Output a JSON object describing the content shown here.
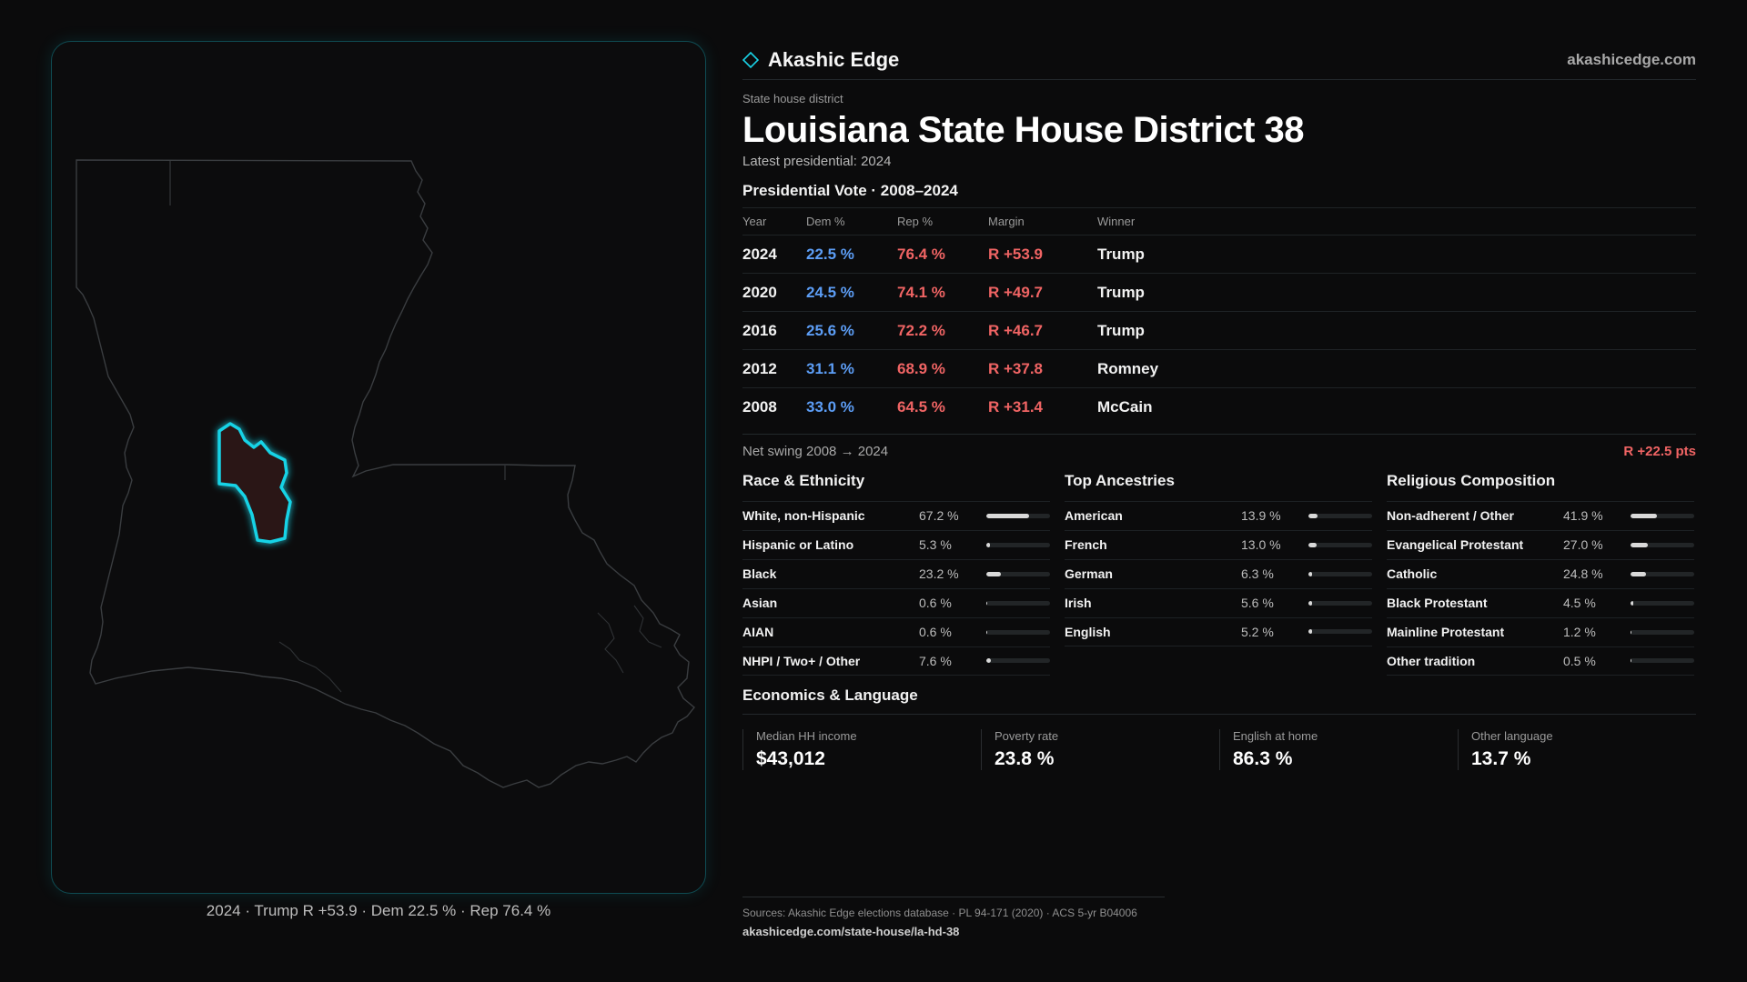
{
  "brand": {
    "name": "Akashic Edge",
    "url": "akashicedge.com"
  },
  "district": {
    "type_label": "State house district",
    "title": "Louisiana State House District 38",
    "latest": "Latest presidential: 2024"
  },
  "presidential": {
    "title": "Presidential Vote · 2008–2024",
    "headers": {
      "year": "Year",
      "dem": "Dem %",
      "rep": "Rep %",
      "margin": "Margin",
      "winner": "Winner"
    },
    "rows": [
      {
        "year": "2024",
        "dem": "22.5 %",
        "rep": "76.4 %",
        "margin": "R +53.9",
        "winner": "Trump"
      },
      {
        "year": "2020",
        "dem": "24.5 %",
        "rep": "74.1 %",
        "margin": "R +49.7",
        "winner": "Trump"
      },
      {
        "year": "2016",
        "dem": "25.6 %",
        "rep": "72.2 %",
        "margin": "R +46.7",
        "winner": "Trump"
      },
      {
        "year": "2012",
        "dem": "31.1 %",
        "rep": "68.9 %",
        "margin": "R +37.8",
        "winner": "Romney"
      },
      {
        "year": "2008",
        "dem": "33.0 %",
        "rep": "64.5 %",
        "margin": "R +31.4",
        "winner": "McCain"
      }
    ],
    "swing_label": "Net swing 2008 → 2024",
    "swing_value": "R +22.5 pts"
  },
  "race": {
    "title": "Race & Ethnicity",
    "rows": [
      {
        "label": "White, non-Hispanic",
        "value": "67.2 %",
        "pct": 67.2
      },
      {
        "label": "Hispanic or Latino",
        "value": "5.3 %",
        "pct": 5.3
      },
      {
        "label": "Black",
        "value": "23.2 %",
        "pct": 23.2
      },
      {
        "label": "Asian",
        "value": "0.6 %",
        "pct": 0.6
      },
      {
        "label": "AIAN",
        "value": "0.6 %",
        "pct": 0.6
      },
      {
        "label": "NHPI / Two+ / Other",
        "value": "7.6 %",
        "pct": 7.6
      }
    ]
  },
  "ancestry": {
    "title": "Top Ancestries",
    "rows": [
      {
        "label": "American",
        "value": "13.9 %",
        "pct": 13.9
      },
      {
        "label": "French",
        "value": "13.0 %",
        "pct": 13.0
      },
      {
        "label": "German",
        "value": "6.3 %",
        "pct": 6.3
      },
      {
        "label": "Irish",
        "value": "5.6 %",
        "pct": 5.6
      },
      {
        "label": "English",
        "value": "5.2 %",
        "pct": 5.2
      }
    ]
  },
  "religion": {
    "title": "Religious Composition",
    "rows": [
      {
        "label": "Non-adherent / Other",
        "value": "41.9 %",
        "pct": 41.9
      },
      {
        "label": "Evangelical Protestant",
        "value": "27.0 %",
        "pct": 27.0
      },
      {
        "label": "Catholic",
        "value": "24.8 %",
        "pct": 24.8
      },
      {
        "label": "Black Protestant",
        "value": "4.5 %",
        "pct": 4.5
      },
      {
        "label": "Mainline Protestant",
        "value": "1.2 %",
        "pct": 1.2
      },
      {
        "label": "Other tradition",
        "value": "0.5 %",
        "pct": 0.5
      }
    ]
  },
  "economics": {
    "title": "Economics & Language",
    "cards": [
      {
        "label": "Median HH income",
        "value": "$43,012"
      },
      {
        "label": "Poverty rate",
        "value": "23.8 %"
      },
      {
        "label": "English at home",
        "value": "86.3 %"
      },
      {
        "label": "Other language",
        "value": "13.7 %"
      }
    ]
  },
  "map": {
    "caption": "2024 · Trump R +53.9 · Dem 22.5 % · Rep 76.4 %",
    "district_fill": "#2a1516",
    "district_stroke": "#19d3e6",
    "state_stroke": "#3a3d40"
  },
  "sources": {
    "line": "Sources: Akashic Edge elections database · PL 94-171 (2020) · ACS 5-yr B04006",
    "url": "akashicedge.com/state-house/la-hd-38"
  },
  "colors": {
    "dem": "#5c9df5",
    "rep": "#f06464",
    "accent": "#19d3e6",
    "background": "#0b0b0c"
  }
}
